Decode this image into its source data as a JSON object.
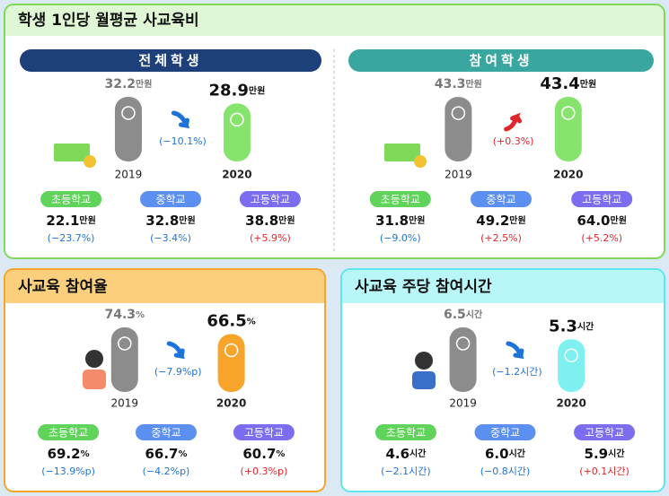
{
  "cost": {
    "title": "학생 1인당 월평균 사교육비",
    "panels": [
      {
        "header": "전체학생",
        "unit": "만원",
        "bars": [
          {
            "year": "2019",
            "value": 32.2
          },
          {
            "year": "2020",
            "value": 28.9
          }
        ],
        "bar_color": "#86e36c",
        "change": "(−10.1%)",
        "change_color": "#1e73d8",
        "schools": [
          {
            "name": "초등학교",
            "value": "22.1",
            "change": "(−23.7%)",
            "change_color": "#1e73d8"
          },
          {
            "name": "중학교",
            "value": "32.8",
            "change": "(−3.4%)",
            "change_color": "#1e73d8"
          },
          {
            "name": "고등학교",
            "value": "38.8",
            "change": "(+5.9%)",
            "change_color": "#e0262b"
          }
        ]
      },
      {
        "header": "참여학생",
        "unit": "만원",
        "bars": [
          {
            "year": "2019",
            "value": 43.3
          },
          {
            "year": "2020",
            "value": 43.4
          }
        ],
        "bar_color": "#86e36c",
        "change": "(+0.3%)",
        "change_color": "#e0262b",
        "schools": [
          {
            "name": "초등학교",
            "value": "31.8",
            "change": "(−9.0%)",
            "change_color": "#1e73d8"
          },
          {
            "name": "중학교",
            "value": "49.2",
            "change": "(+2.5%)",
            "change_color": "#e0262b"
          },
          {
            "name": "고등학교",
            "value": "64.0",
            "change": "(+5.2%)",
            "change_color": "#e0262b"
          }
        ]
      }
    ]
  },
  "participation": {
    "title": "사교육 참여율",
    "panel": {
      "unit": "%",
      "bars": [
        {
          "year": "2019",
          "value": 74.3
        },
        {
          "year": "2020",
          "value": 66.5
        }
      ],
      "bar_color": "#f6a52a",
      "change": "(−7.9%p)",
      "change_color": "#1e73d8",
      "schools": [
        {
          "name": "초등학교",
          "value": "69.2",
          "change": "(−13.9%p)",
          "change_color": "#1e73d8"
        },
        {
          "name": "중학교",
          "value": "66.7",
          "change": "(−4.2%p)",
          "change_color": "#1e73d8"
        },
        {
          "name": "고등학교",
          "value": "60.7",
          "change": "(+0.3%p)",
          "change_color": "#e0262b"
        }
      ]
    }
  },
  "hours": {
    "title": "사교육 주당 참여시간",
    "panel": {
      "unit": "시간",
      "bars": [
        {
          "year": "2019",
          "value": 6.5
        },
        {
          "year": "2020",
          "value": 5.3
        }
      ],
      "bar_color": "#7ef0f0",
      "change": "(−1.2시간)",
      "change_color": "#1e73d8",
      "schools": [
        {
          "name": "초등학교",
          "value": "4.6",
          "change": "(−2.1시간)",
          "change_color": "#1e73d8"
        },
        {
          "name": "중학교",
          "value": "6.0",
          "change": "(−0.8시간)",
          "change_color": "#1e73d8"
        },
        {
          "name": "고등학교",
          "value": "5.9",
          "change": "(+0.1시간)",
          "change_color": "#e0262b"
        }
      ]
    }
  }
}
